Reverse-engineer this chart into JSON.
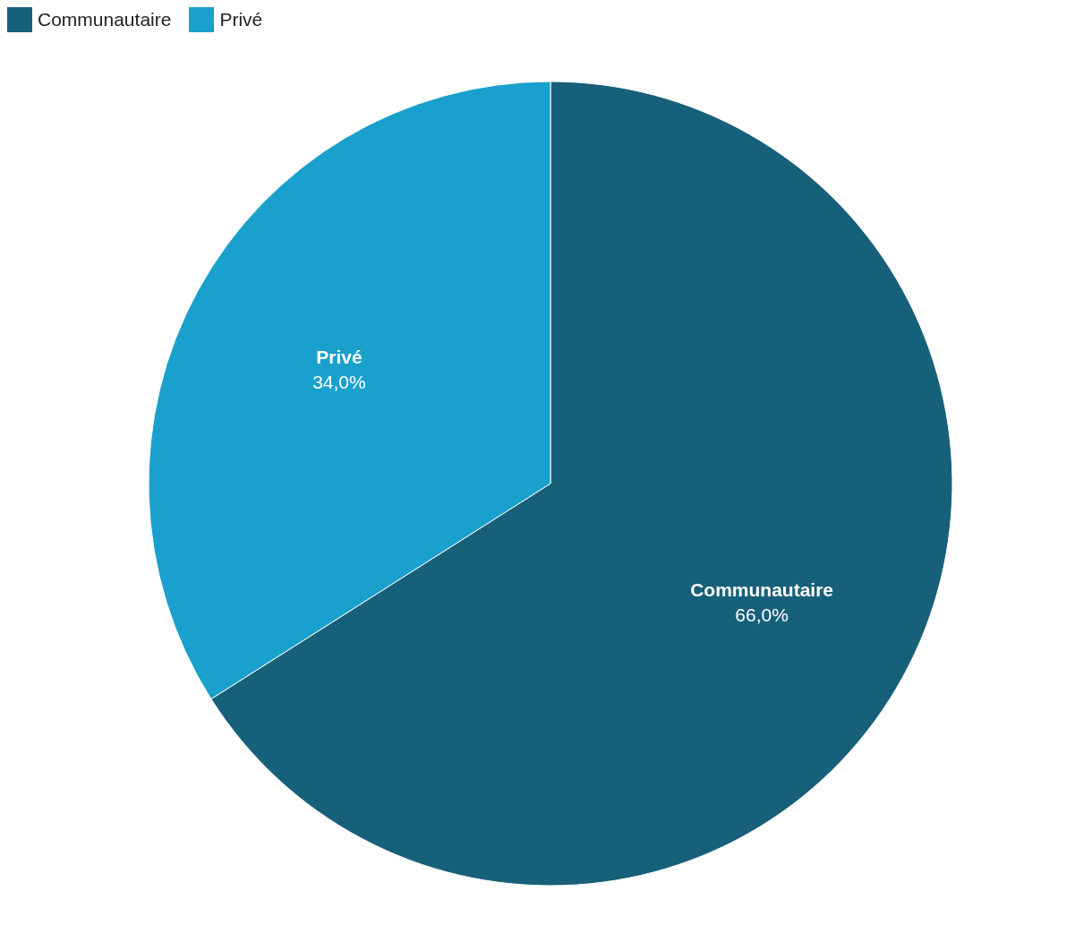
{
  "chart_data": {
    "type": "pie",
    "categories": [
      "Communautaire",
      "Privé"
    ],
    "values": [
      66,
      34
    ],
    "value_labels": [
      "66,0%",
      "34,0%"
    ],
    "colors": [
      "#17607a",
      "#1aa0cc"
    ],
    "legend": "top left"
  }
}
